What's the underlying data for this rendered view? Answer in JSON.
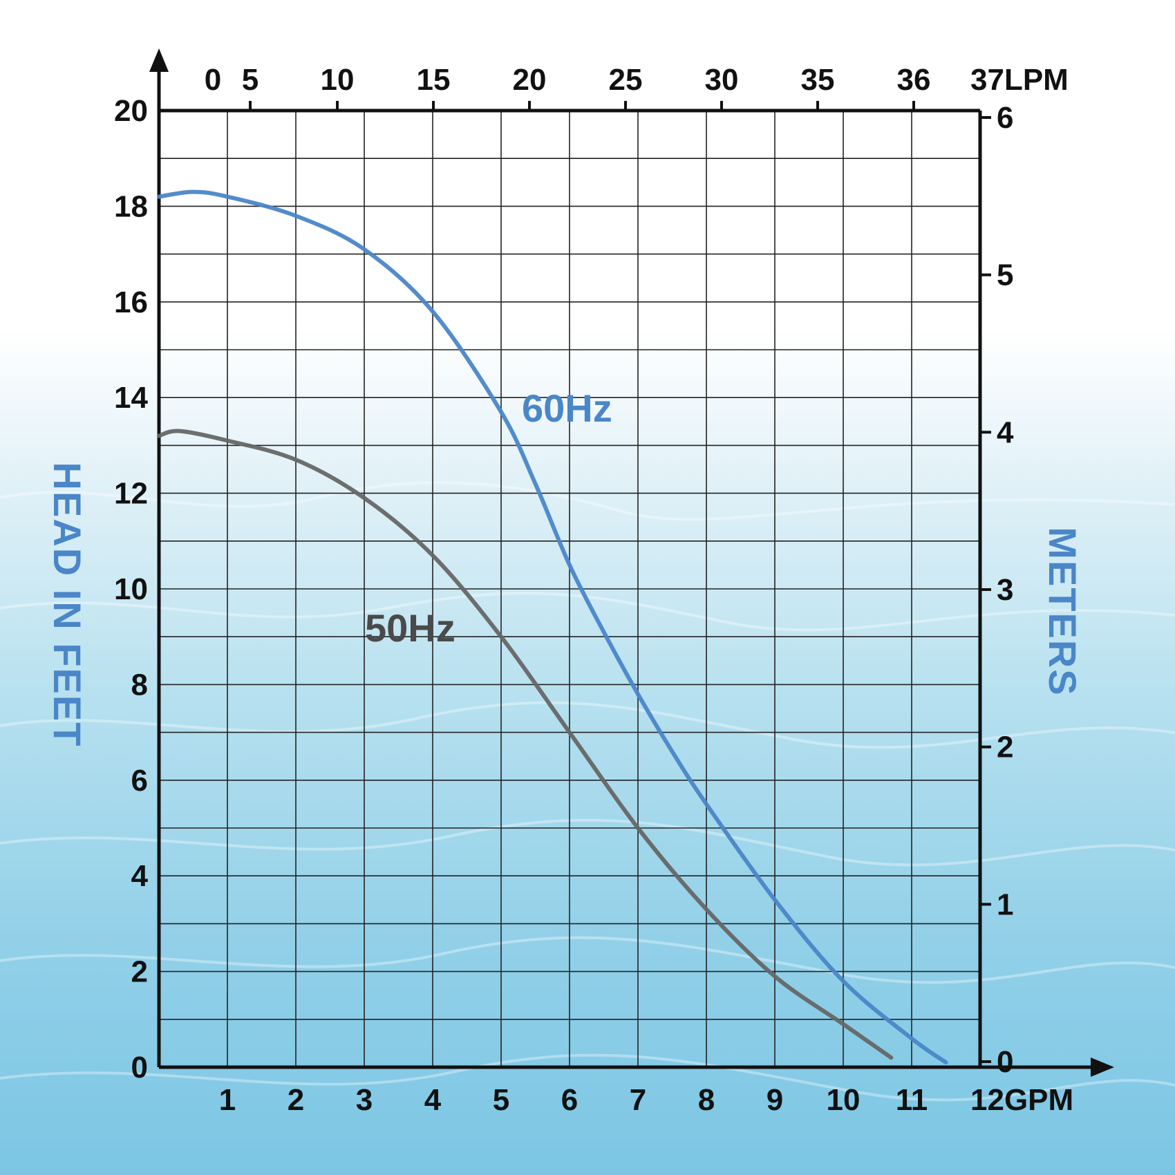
{
  "chart_data": {
    "type": "line",
    "title": "",
    "ylabel_left": "HEAD IN FEET",
    "ylabel_right": "METERS",
    "x_bottom": {
      "unit": "GPM",
      "ticks": [
        1,
        2,
        3,
        4,
        5,
        6,
        7,
        8,
        9,
        10,
        11,
        12
      ],
      "tick_labels": [
        "1",
        "2",
        "3",
        "4",
        "5",
        "6",
        "7",
        "8",
        "9",
        "10",
        "11",
        "12GPM"
      ],
      "range": [
        0,
        12
      ]
    },
    "x_top": {
      "unit": "LPM",
      "tick_labels": [
        "0",
        "5",
        "10",
        "15",
        "20",
        "25",
        "30",
        "35",
        "36",
        "37LPM"
      ]
    },
    "y_left": {
      "unit": "feet",
      "ticks": [
        0,
        2,
        4,
        6,
        8,
        10,
        12,
        14,
        16,
        18,
        20
      ],
      "tick_labels": [
        "0",
        "2",
        "4",
        "6",
        "8",
        "10",
        "12",
        "14",
        "16",
        "18",
        "20"
      ],
      "range": [
        0,
        20
      ]
    },
    "y_right": {
      "unit": "meters",
      "ticks": [
        0,
        1,
        2,
        3,
        4,
        5,
        6
      ],
      "tick_labels": [
        "0",
        "1",
        "2",
        "3",
        "4",
        "5",
        "6"
      ],
      "range": [
        0,
        6
      ]
    },
    "grid": true,
    "series": [
      {
        "name": "60Hz",
        "color": "#4a86c8",
        "x": [
          0,
          0.5,
          1,
          2,
          3,
          4,
          5,
          5.5,
          6,
          6.5,
          7,
          7.5,
          8,
          9,
          10,
          11,
          11.5
        ],
        "y": [
          18.2,
          18.3,
          18.2,
          17.8,
          17.1,
          15.8,
          13.7,
          12.2,
          10.5,
          9.1,
          7.8,
          6.6,
          5.5,
          3.5,
          1.8,
          0.6,
          0.1
        ]
      },
      {
        "name": "50Hz",
        "color": "#666666",
        "x": [
          0,
          0.3,
          1,
          2,
          3,
          4,
          5,
          6,
          7,
          8,
          9,
          10,
          10.7
        ],
        "y": [
          13.2,
          13.3,
          13.1,
          12.7,
          11.9,
          10.7,
          9.0,
          7.0,
          5.0,
          3.3,
          1.9,
          0.9,
          0.2
        ]
      }
    ]
  }
}
